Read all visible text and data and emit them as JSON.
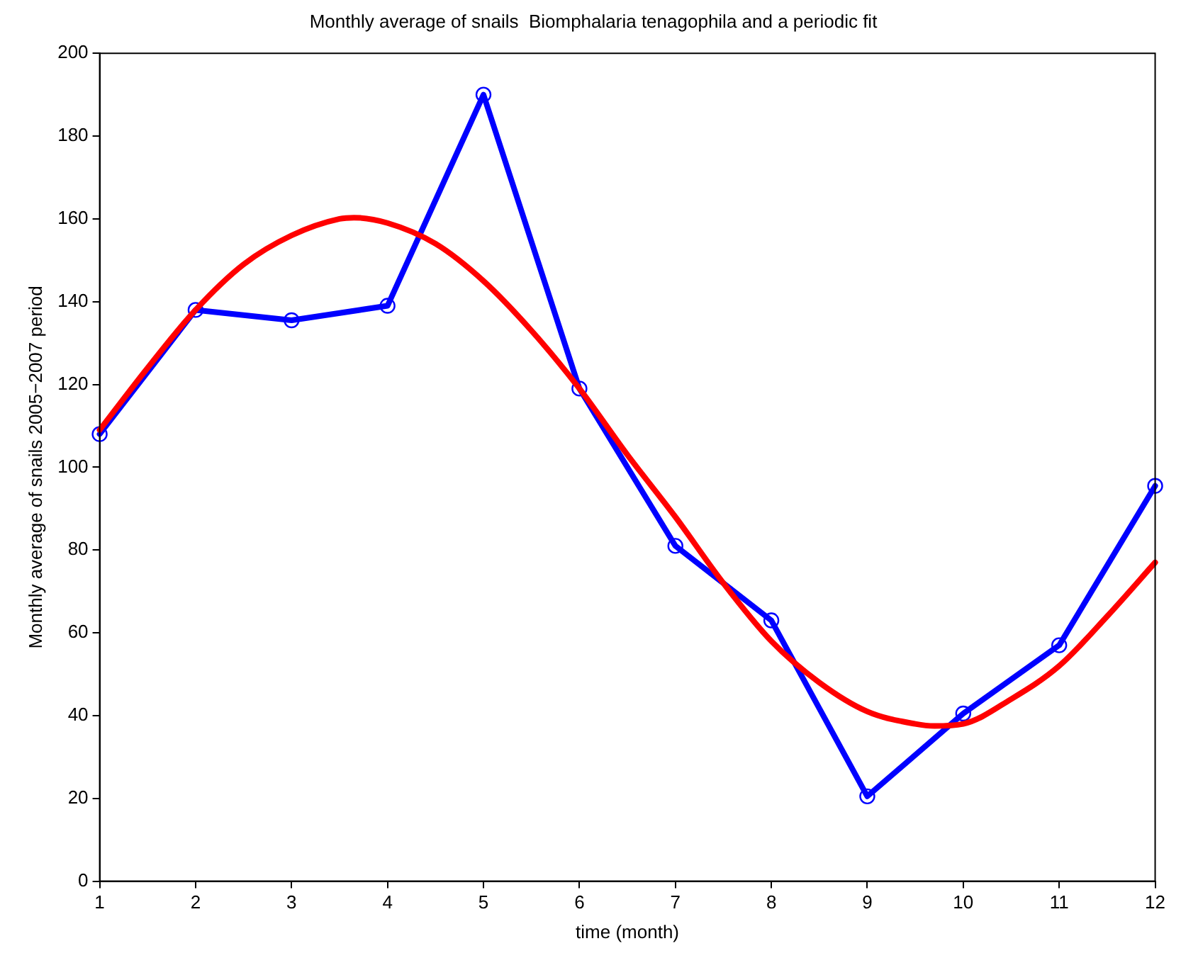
{
  "chart_data": {
    "type": "line",
    "title": "Monthly average of snails  Biomphalaria tenagophila and a periodic fit",
    "xlabel": "time (month)",
    "ylabel": "Monthly average of snails 2005−2007 period",
    "series": [
      {
        "color": "#0000ff",
        "marker": "circle",
        "x": [
          1,
          2,
          3,
          4,
          5,
          6,
          7,
          8,
          9,
          10,
          11,
          12
        ],
        "values": [
          108,
          138,
          135.5,
          139,
          190,
          119,
          81,
          63,
          20.5,
          40.5,
          57,
          95.5
        ]
      },
      {
        "color": "#ff0000",
        "marker": "none",
        "x": [
          1,
          1.5,
          2,
          2.5,
          3,
          3.5,
          3.65,
          4,
          4.5,
          5,
          5.5,
          6,
          6.5,
          7,
          7.5,
          8,
          8.5,
          9,
          9.5,
          9.7,
          10,
          10.5,
          11,
          11.5,
          12
        ],
        "values": [
          109,
          124,
          138,
          149,
          156,
          160,
          160.3,
          159,
          154,
          145,
          133,
          119,
          103,
          88,
          72,
          58,
          48,
          41,
          38,
          37.5,
          38,
          44,
          52,
          64,
          77
        ]
      }
    ],
    "xlim": [
      1,
      12
    ],
    "xticks": [
      1,
      2,
      3,
      4,
      5,
      6,
      7,
      8,
      9,
      10,
      11,
      12
    ],
    "ylim": [
      0,
      200
    ],
    "yticks": [
      0,
      20,
      40,
      60,
      80,
      100,
      120,
      140,
      160,
      180,
      200
    ],
    "grid": false,
    "legend": false,
    "line_style": "solid"
  }
}
